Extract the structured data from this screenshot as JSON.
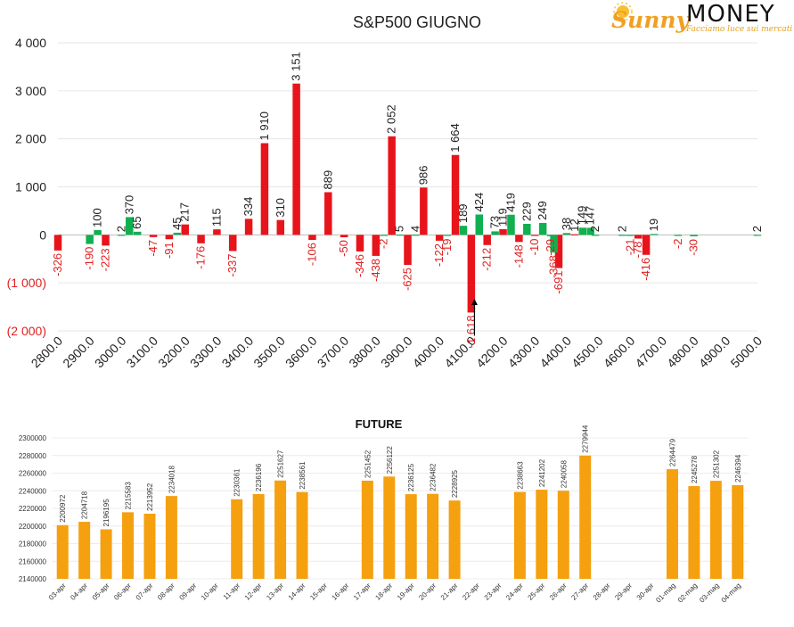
{
  "logo": {
    "sunny": "Sunny",
    "money": "MONEY",
    "tagline": "Facciamo luce sui mercati",
    "accent": "#f0a020"
  },
  "colors": {
    "red": "#e8141c",
    "green": "#10b050",
    "orange": "#f5a00f"
  },
  "chart_data": [
    {
      "type": "bar",
      "title": "S&P500 GIUGNO",
      "xlabel": "",
      "ylabel": "",
      "ylim": [
        -2000,
        4000
      ],
      "y_ticks": [
        4000,
        3000,
        2000,
        1000,
        0,
        -1000,
        -2000
      ],
      "y_tick_labels": [
        "4 000",
        "3 000",
        "2 000",
        "1 000",
        "0",
        "(1 000)",
        "(2 000)"
      ],
      "x_ticks": [
        2800,
        2900,
        3000,
        3100,
        3200,
        3300,
        3400,
        3500,
        3600,
        3700,
        3800,
        3900,
        4000,
        4100,
        4200,
        4300,
        4400,
        4500,
        4600,
        4700,
        4800,
        4900,
        5000
      ],
      "x_tick_labels": [
        "2800.0",
        "2900.0",
        "3000.0",
        "3100.0",
        "3200.0",
        "3300.0",
        "3400.0",
        "3500.0",
        "3600.0",
        "3700.0",
        "3800.0",
        "3900.0",
        "4000.0",
        "4100.0",
        "4200.0",
        "4300.0",
        "4400.0",
        "4500.0",
        "4600.0",
        "4700.0",
        "4800.0",
        "4900.0",
        "5000.0"
      ],
      "grid": true,
      "current_price_marker": 4110,
      "series": [
        {
          "color": "red",
          "points": [
            {
              "strike": 2800,
              "value": -326,
              "label": "-326"
            },
            {
              "strike": 2950,
              "value": -223,
              "label": "-223"
            },
            {
              "strike": 3100,
              "value": -47,
              "label": "-47"
            },
            {
              "strike": 3150,
              "value": -91,
              "label": "-91"
            },
            {
              "strike": 3200,
              "value": 217,
              "label": "217"
            },
            {
              "strike": 3250,
              "value": -176,
              "label": "-176"
            },
            {
              "strike": 3300,
              "value": 115,
              "label": "115"
            },
            {
              "strike": 3350,
              "value": -337,
              "label": "-337"
            },
            {
              "strike": 3400,
              "value": 334,
              "label": "334"
            },
            {
              "strike": 3450,
              "value": 1910,
              "label": "1 910"
            },
            {
              "strike": 3500,
              "value": 310,
              "label": "310"
            },
            {
              "strike": 3550,
              "value": 3151,
              "label": "3 151"
            },
            {
              "strike": 3600,
              "value": -106,
              "label": "-106"
            },
            {
              "strike": 3650,
              "value": 889,
              "label": "889"
            },
            {
              "strike": 3700,
              "value": -50,
              "label": "-50"
            },
            {
              "strike": 3750,
              "value": -346,
              "label": "-346"
            },
            {
              "strike": 3800,
              "value": -438,
              "label": "-438"
            },
            {
              "strike": 3850,
              "value": 2052,
              "label": "2 052"
            },
            {
              "strike": 3900,
              "value": -625,
              "label": "-625"
            },
            {
              "strike": 3950,
              "value": 986,
              "label": "986"
            },
            {
              "strike": 4000,
              "value": -122,
              "label": "-122"
            },
            {
              "strike": 4050,
              "value": 1664,
              "label": "1 664"
            },
            {
              "strike": 4100,
              "value": -1618,
              "label": "-1 618"
            },
            {
              "strike": 4150,
              "value": -212,
              "label": "-212"
            },
            {
              "strike": 4200,
              "value": 119,
              "label": "119"
            },
            {
              "strike": 4250,
              "value": -148,
              "label": "-148"
            },
            {
              "strike": 4300,
              "value": -10,
              "label": "-10"
            },
            {
              "strike": 4375,
              "value": -691,
              "label": "-691"
            },
            {
              "strike": 4425,
              "value": 12,
              "label": "12"
            },
            {
              "strike": 4625,
              "value": -78,
              "label": "-78"
            },
            {
              "strike": 4650,
              "value": -416,
              "label": "-416"
            }
          ]
        },
        {
          "color": "green",
          "points": [
            {
              "strike": 2900,
              "value": -190,
              "label": "-190"
            },
            {
              "strike": 2925,
              "value": 100,
              "label": "100"
            },
            {
              "strike": 3000,
              "value": 2,
              "label": "2"
            },
            {
              "strike": 3025,
              "value": 370,
              "label": "370"
            },
            {
              "strike": 3050,
              "value": 65,
              "label": "65"
            },
            {
              "strike": 3175,
              "value": 45,
              "label": "45"
            },
            {
              "strike": 3825,
              "value": -2,
              "label": "-2"
            },
            {
              "strike": 3875,
              "value": 5,
              "label": "5"
            },
            {
              "strike": 3925,
              "value": 4,
              "label": "4"
            },
            {
              "strike": 4025,
              "value": -19,
              "label": "-19"
            },
            {
              "strike": 4075,
              "value": 189,
              "label": "189"
            },
            {
              "strike": 4125,
              "value": 424,
              "label": "424"
            },
            {
              "strike": 4175,
              "value": 73,
              "label": "73"
            },
            {
              "strike": 4225,
              "value": 419,
              "label": "419"
            },
            {
              "strike": 4275,
              "value": 229,
              "label": "229"
            },
            {
              "strike": 4325,
              "value": 249,
              "label": "249"
            },
            {
              "strike": 4350,
              "value": -29,
              "label": "-29"
            },
            {
              "strike": 4360,
              "value": -368,
              "label": "-368"
            },
            {
              "strike": 4400,
              "value": 38,
              "label": "38"
            },
            {
              "strike": 4450,
              "value": 149,
              "label": "149"
            },
            {
              "strike": 4475,
              "value": 147,
              "label": "147"
            },
            {
              "strike": 4490,
              "value": 2,
              "label": "2"
            },
            {
              "strike": 4575,
              "value": 2,
              "label": "2"
            },
            {
              "strike": 4600,
              "value": -21,
              "label": "-21"
            },
            {
              "strike": 4675,
              "value": 19,
              "label": "19"
            },
            {
              "strike": 4750,
              "value": -2,
              "label": "-2"
            },
            {
              "strike": 4800,
              "value": -30,
              "label": "-30"
            },
            {
              "strike": 5000,
              "value": 2,
              "label": "2"
            }
          ]
        }
      ]
    },
    {
      "type": "bar",
      "title": "FUTURE",
      "xlabel": "",
      "ylabel": "",
      "ylim": [
        2140000,
        2300000
      ],
      "y_ticks": [
        2300000,
        2280000,
        2260000,
        2240000,
        2220000,
        2200000,
        2180000,
        2160000,
        2140000
      ],
      "y_tick_labels": [
        "2300000",
        "2280000",
        "2260000",
        "2240000",
        "2220000",
        "2200000",
        "2180000",
        "2160000",
        "2140000"
      ],
      "categories": [
        "03-apr",
        "04-apr",
        "05-apr",
        "06-apr",
        "07-apr",
        "08-apr",
        "09-apr",
        "10-apr",
        "11-apr",
        "12-apr",
        "13-apr",
        "14-apr",
        "15-apr",
        "16-apr",
        "17-apr",
        "18-apr",
        "19-apr",
        "20-apr",
        "21-apr",
        "22-apr",
        "23-apr",
        "24-apr",
        "25-apr",
        "26-apr",
        "27-apr",
        "28-apr",
        "29-apr",
        "30-apr",
        "01-mag",
        "02-mag",
        "03-mag",
        "04-mag"
      ],
      "values": [
        2200972,
        2204718,
        2196195,
        2215583,
        2213952,
        2234018,
        null,
        null,
        2230361,
        2236196,
        2251627,
        2238561,
        null,
        null,
        2251452,
        2256122,
        2236125,
        2236482,
        2228925,
        null,
        null,
        2238663,
        2241202,
        2240058,
        2279944,
        null,
        null,
        null,
        2264479,
        2245278,
        2251302,
        2246394
      ],
      "value_labels": [
        "2200972",
        "2204718",
        "2196195",
        "2215583",
        "2213952",
        "2234018",
        "",
        "",
        "2230361",
        "2236196",
        "2251627",
        "2238561",
        "",
        "",
        "2251452",
        "2256122",
        "2236125",
        "2236482",
        "2228925",
        "",
        "",
        "2238663",
        "2241202",
        "2240058",
        "2279944",
        "",
        "",
        "",
        "2264479",
        "2245278",
        "2251302",
        "2246394"
      ],
      "grid": true
    }
  ]
}
